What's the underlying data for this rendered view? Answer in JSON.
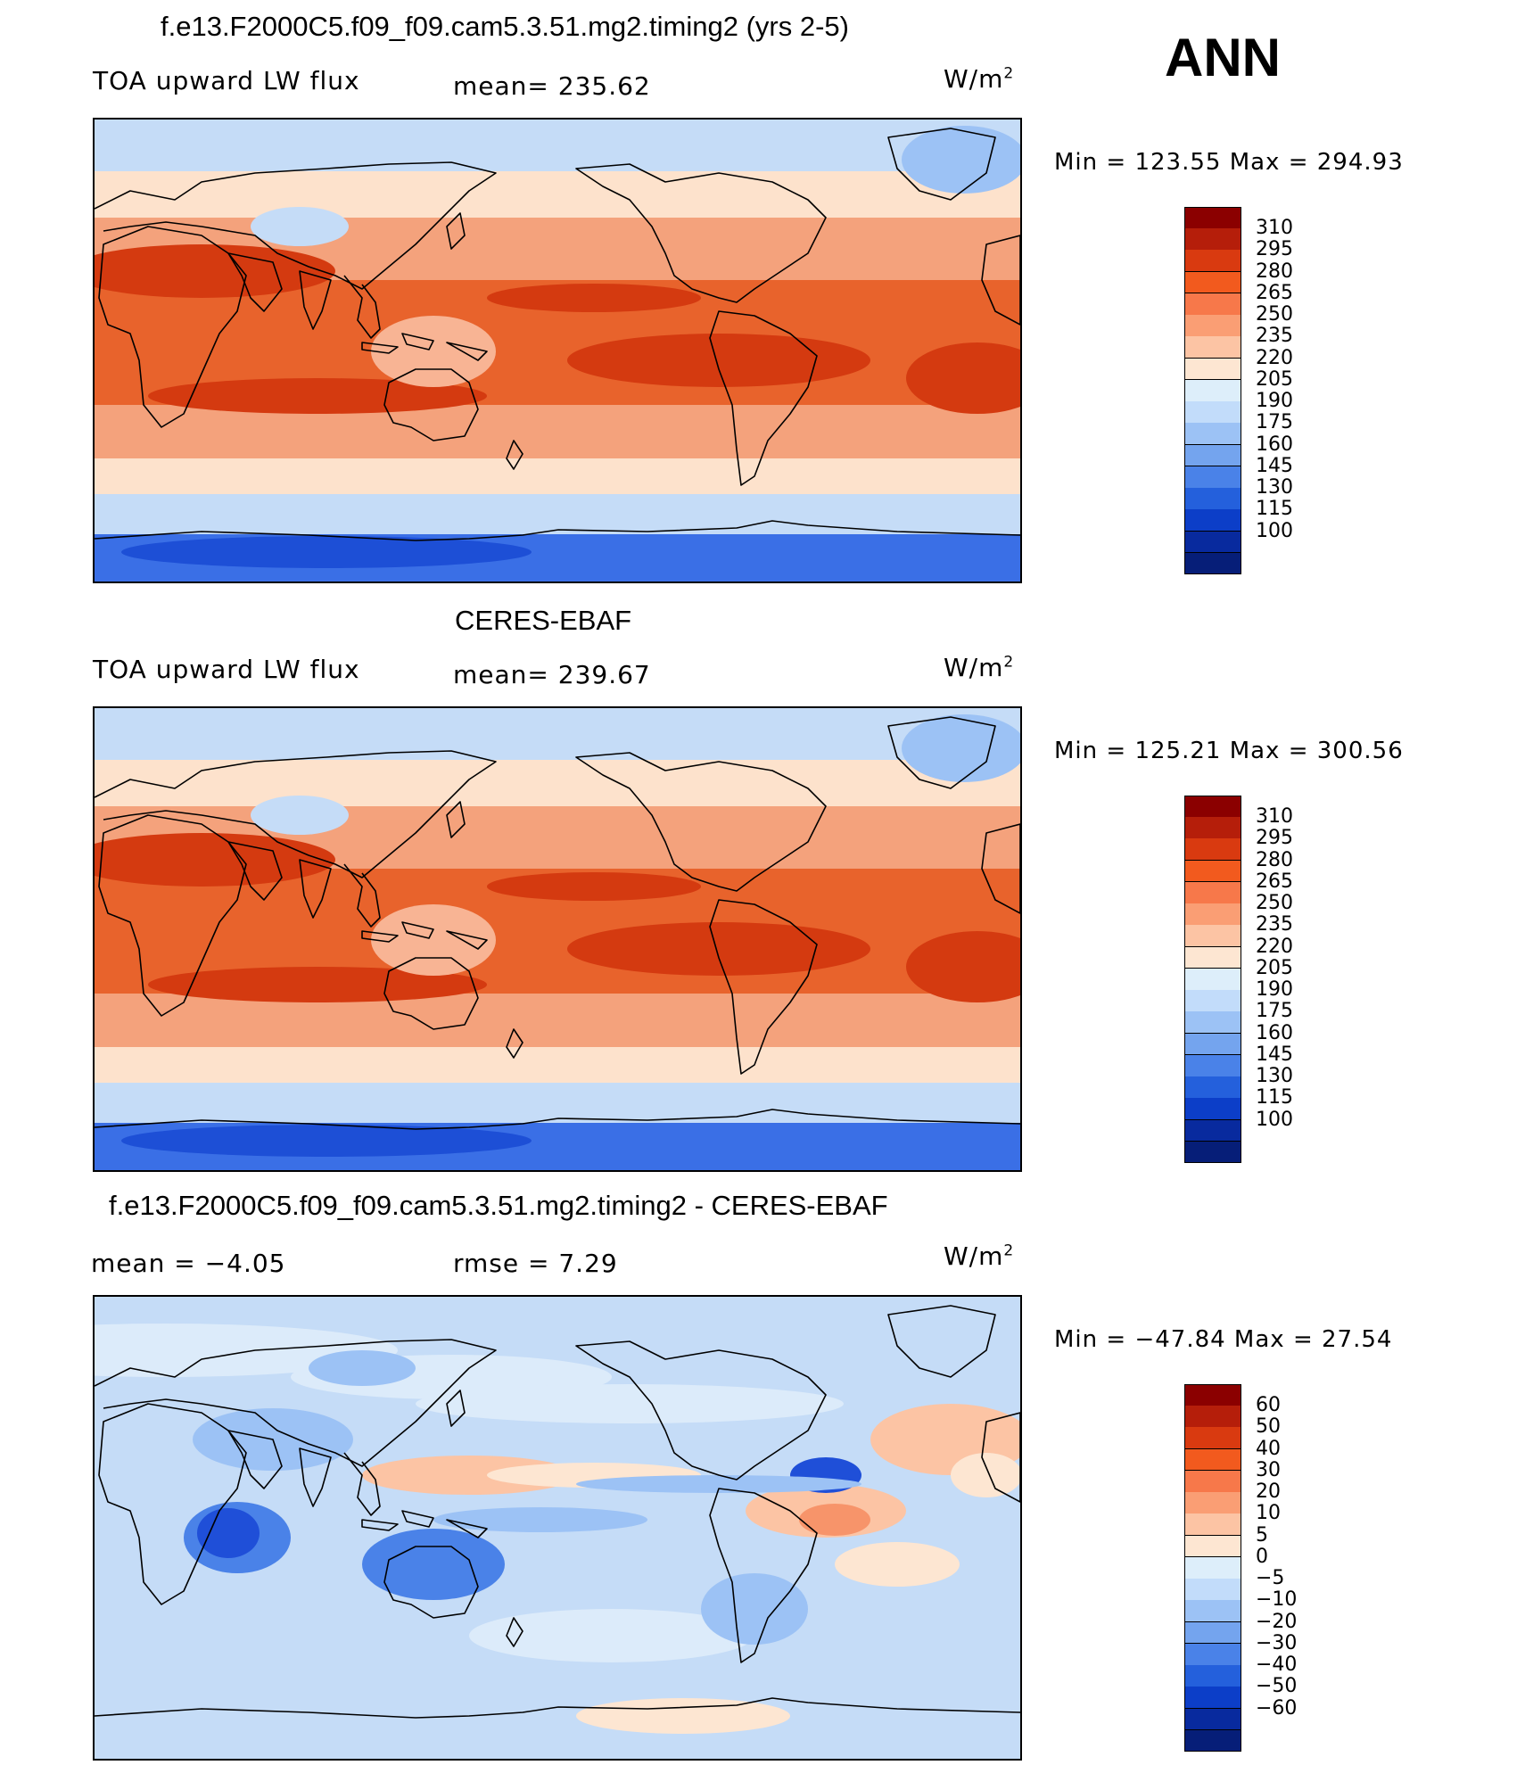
{
  "season": "ANN",
  "panels": [
    {
      "title": "f.e13.F2000C5.f09_f09.cam5.3.51.mg2.timing2 (yrs 2-5)",
      "variable": "TOA upward LW flux",
      "mean_text": "mean= 235.62",
      "units_base": "W/m",
      "units_exp": "2",
      "minmax_text": "Min = 123.55 Max = 294.93",
      "colorbar": {
        "labels": [
          "310",
          "295",
          "280",
          "265",
          "250",
          "235",
          "220",
          "205",
          "190",
          "175",
          "160",
          "145",
          "130",
          "115",
          "100"
        ],
        "colors": [
          "#8b0000",
          "#b51e0a",
          "#d93a10",
          "#f25a1e",
          "#f7784a",
          "#fa9e74",
          "#fcc4a4",
          "#fde6d2",
          "#ddeefa",
          "#c2dcfa",
          "#9cc2f5",
          "#74a4ee",
          "#4a82e8",
          "#2460dc",
          "#0c3ec8",
          "#082a9e",
          "#061e78"
        ]
      },
      "map_colors": {
        "polar": "#3a6fe6",
        "highlat": "#c5dcf7",
        "midlat": "#fde2cc",
        "subtrop": "#f4a27c",
        "tropics": "#e8632c",
        "core": "#d43a10",
        "land": "#f8b494"
      }
    },
    {
      "title": "CERES-EBAF",
      "variable": "TOA upward LW flux",
      "mean_text": "mean= 239.67",
      "units_base": "W/m",
      "units_exp": "2",
      "minmax_text": "Min = 125.21 Max = 300.56",
      "colorbar": {
        "labels": [
          "310",
          "295",
          "280",
          "265",
          "250",
          "235",
          "220",
          "205",
          "190",
          "175",
          "160",
          "145",
          "130",
          "115",
          "100"
        ],
        "colors": [
          "#8b0000",
          "#b51e0a",
          "#d93a10",
          "#f25a1e",
          "#f7784a",
          "#fa9e74",
          "#fcc4a4",
          "#fde6d2",
          "#ddeefa",
          "#c2dcfa",
          "#9cc2f5",
          "#74a4ee",
          "#4a82e8",
          "#2460dc",
          "#0c3ec8",
          "#082a9e",
          "#061e78"
        ]
      },
      "map_colors": {
        "polar": "#3a6fe6",
        "highlat": "#c5dcf7",
        "midlat": "#fde2cc",
        "subtrop": "#f4a27c",
        "tropics": "#e8632c",
        "core": "#d43a10",
        "land": "#f8b494"
      }
    },
    {
      "title": "f.e13.F2000C5.f09_f09.cam5.3.51.mg2.timing2 - CERES-EBAF",
      "mean_text": "mean =   −4.05",
      "rmse_text": "rmse =    7.29",
      "units_base": "W/m",
      "units_exp": "2",
      "minmax_text": "Min = −47.84 Max =  27.54",
      "colorbar": {
        "labels": [
          "60",
          "50",
          "40",
          "30",
          "20",
          "10",
          "5",
          "0",
          "−5",
          "−10",
          "−20",
          "−30",
          "−40",
          "−50",
          "−60"
        ],
        "colors": [
          "#8b0000",
          "#b51e0a",
          "#d93a10",
          "#f25a1e",
          "#f7784a",
          "#fa9e74",
          "#fcc4a4",
          "#fde6d2",
          "#ddeefa",
          "#c2dcfa",
          "#9cc2f5",
          "#74a4ee",
          "#4a82e8",
          "#2460dc",
          "#0c3ec8",
          "#082a9e",
          "#061e78"
        ]
      },
      "map_colors": {
        "base": "#c5dcf7",
        "light": "#dcebfa",
        "mid": "#9cc2f5",
        "dark": "#4a82e8",
        "deep": "#1f4fd8",
        "warm": "#fcc4a4",
        "warm2": "#f7946a",
        "pale": "#fde6d2"
      }
    }
  ]
}
